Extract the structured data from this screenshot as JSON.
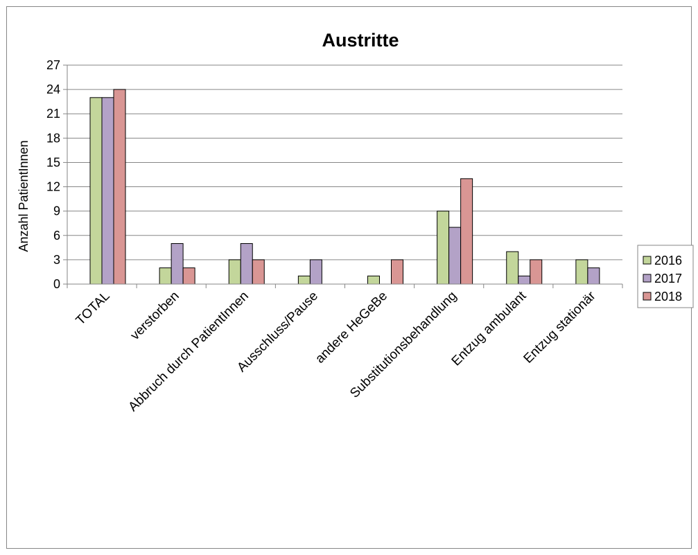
{
  "chart_data": {
    "type": "bar",
    "title": "Austritte",
    "ylabel": "Anzahl PatientInnen",
    "xlabel": "",
    "ylim": [
      0,
      27
    ],
    "yticks": [
      0,
      3,
      6,
      9,
      12,
      15,
      18,
      21,
      24,
      27
    ],
    "grid": true,
    "legend_position": "right",
    "categories": [
      "TOTAL",
      "verstorben",
      "Abbruch durch PatientInnen",
      "Ausschluss/Pause",
      "andere HeGeBe",
      "Substitutionsbehandlung",
      "Entzug ambulant",
      "Entzug stationär"
    ],
    "series": [
      {
        "name": "2016",
        "color": "#c3d69b",
        "values": [
          23,
          2,
          3,
          1,
          1,
          9,
          4,
          3
        ]
      },
      {
        "name": "2017",
        "color": "#b3a2c7",
        "values": [
          23,
          5,
          5,
          3,
          0,
          7,
          1,
          2
        ]
      },
      {
        "name": "2018",
        "color": "#d99694",
        "values": [
          24,
          2,
          3,
          0,
          3,
          13,
          3,
          0
        ]
      }
    ]
  }
}
